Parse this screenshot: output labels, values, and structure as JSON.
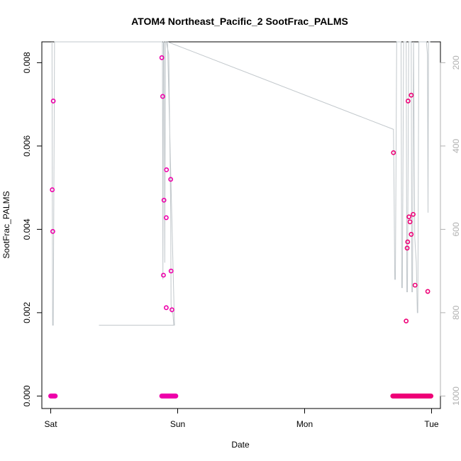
{
  "chart_data": {
    "type": "scatter",
    "title": "ATOM4 Northeast_Pacific_2 SootFrac_PALMS",
    "xlabel": "Date",
    "ylabel": "SootFrac_PALMS",
    "x_ticks": [
      {
        "day": 0,
        "label": "Sat"
      },
      {
        "day": 1,
        "label": "Sun"
      },
      {
        "day": 2,
        "label": "Mon"
      },
      {
        "day": 3,
        "label": "Tue"
      }
    ],
    "xlim": [
      -0.07,
      3.07
    ],
    "ylim": [
      -0.0003,
      0.0085
    ],
    "y_ticks": [
      0,
      0.002,
      0.004,
      0.006,
      0.008
    ],
    "y_tick_labels": [
      "0.000",
      "0.002",
      "0.004",
      "0.006",
      "0.008"
    ],
    "right_axis": {
      "color": "#b0b0b0",
      "range": [
        1030,
        150
      ],
      "ticks": [
        200,
        400,
        600,
        800,
        1000
      ],
      "tick_labels": [
        "200",
        "400",
        "600",
        "800",
        "1000"
      ]
    },
    "altitude_line": {
      "color": "#c2c8cc",
      "points": [
        [
          0.01,
          150
        ],
        [
          0.015,
          830
        ],
        [
          0.02,
          830
        ],
        [
          0.03,
          150
        ],
        [
          0.88,
          150
        ],
        [
          0.884,
          720
        ],
        [
          0.888,
          150
        ],
        [
          0.894,
          150
        ],
        [
          0.898,
          680
        ],
        [
          0.904,
          150
        ],
        [
          0.91,
          150
        ],
        [
          0.93,
          180
        ],
        [
          0.945,
          560
        ],
        [
          0.948,
          780
        ],
        [
          0.955,
          800
        ],
        [
          0.962,
          800
        ],
        [
          0.97,
          830
        ],
        [
          0.975,
          830
        ],
        [
          0.38,
          830
        ],
        [
          0.975,
          830
        ],
        [
          0.92,
          150
        ],
        [
          2.7,
          360
        ],
        [
          2.7,
          360
        ],
        [
          2.705,
          520
        ],
        [
          2.71,
          720
        ],
        [
          2.715,
          720
        ],
        [
          2.725,
          150
        ],
        [
          2.76,
          150
        ],
        [
          2.765,
          740
        ],
        [
          2.77,
          740
        ],
        [
          2.78,
          150
        ],
        [
          2.8,
          150
        ],
        [
          2.805,
          750
        ],
        [
          2.81,
          750
        ],
        [
          2.82,
          150
        ],
        [
          2.84,
          150
        ],
        [
          2.845,
          750
        ],
        [
          2.85,
          750
        ],
        [
          2.858,
          150
        ],
        [
          2.868,
          620
        ],
        [
          2.88,
          680
        ],
        [
          2.888,
          800
        ],
        [
          2.892,
          800
        ],
        [
          2.9,
          150
        ],
        [
          2.96,
          150
        ],
        [
          2.968,
          180
        ],
        [
          2.972,
          560
        ],
        [
          2.976,
          150
        ],
        [
          2.99,
          150
        ]
      ]
    },
    "series": [
      {
        "color": "#ee00aa",
        "points": [
          [
            0.012,
            0.00495
          ],
          [
            0.016,
            0.00395
          ],
          [
            0.02,
            0.00708
          ],
          [
            0.875,
            0.00812
          ],
          [
            0.882,
            0.00719
          ],
          [
            0.892,
            0.0047
          ],
          [
            0.888,
            0.0029
          ],
          [
            0.912,
            0.00543
          ],
          [
            0.91,
            0.00428
          ],
          [
            0.91,
            0.00212
          ],
          [
            0.945,
            0.0052
          ],
          [
            0.948,
            0.003
          ],
          [
            0.955,
            0.00207
          ]
        ]
      },
      {
        "color": "#ee0077",
        "points": [
          [
            2.7,
            0.00584
          ],
          [
            2.8,
            0.0018
          ],
          [
            2.808,
            0.00355
          ],
          [
            2.812,
            0.0037
          ],
          [
            2.815,
            0.00708
          ],
          [
            2.822,
            0.0043
          ],
          [
            2.83,
            0.00418
          ],
          [
            2.84,
            0.00722
          ],
          [
            2.84,
            0.00388
          ],
          [
            2.855,
            0.00436
          ],
          [
            2.87,
            0.00266
          ],
          [
            2.97,
            0.00251
          ]
        ]
      }
    ],
    "zero_bands": [
      {
        "from": 0.0,
        "to": 0.035,
        "color": "#ee00aa"
      },
      {
        "from": 0.875,
        "to": 0.985,
        "color": "#ee00aa"
      },
      {
        "from": 2.695,
        "to": 2.995,
        "color": "#ee0077"
      }
    ]
  }
}
